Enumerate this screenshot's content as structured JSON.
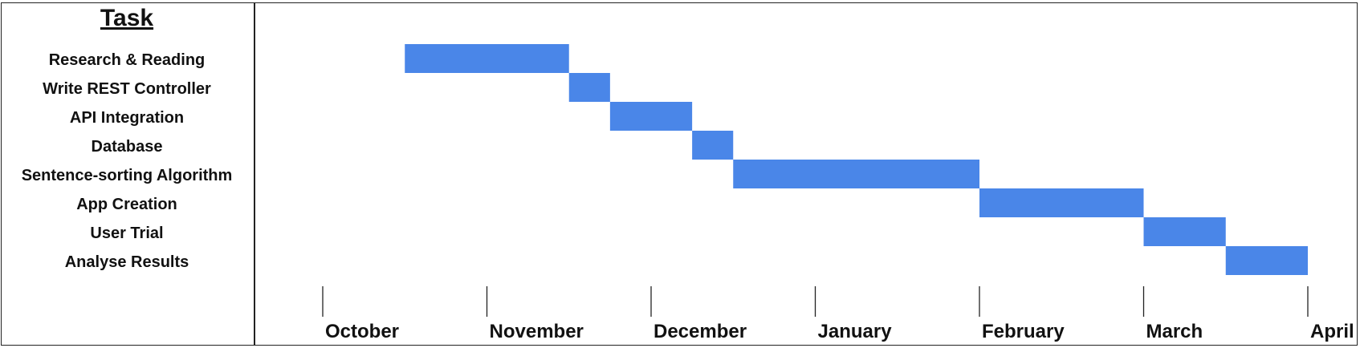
{
  "header": {
    "task_title": "Task"
  },
  "chart_data": {
    "type": "gantt",
    "tasks": [
      {
        "name": "Research & Reading",
        "start": 0.5,
        "end": 1.5
      },
      {
        "name": "Write REST Controller",
        "start": 1.5,
        "end": 1.75
      },
      {
        "name": "API Integration",
        "start": 1.75,
        "end": 2.25
      },
      {
        "name": "Database",
        "start": 2.25,
        "end": 2.5
      },
      {
        "name": "Sentence-sorting Algorithm",
        "start": 2.5,
        "end": 4.0
      },
      {
        "name": "App Creation",
        "start": 4.0,
        "end": 5.0
      },
      {
        "name": "User Trial",
        "start": 5.0,
        "end": 5.5
      },
      {
        "name": "Analyse Results",
        "start": 5.5,
        "end": 6.0
      }
    ],
    "x_ticks": [
      "October",
      "November",
      "December",
      "January",
      "February",
      "March",
      "April"
    ],
    "bar_color": "#4a86e8"
  }
}
